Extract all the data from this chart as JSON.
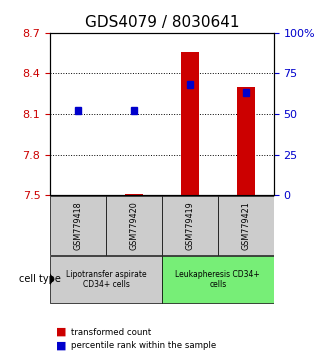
{
  "title": "GDS4079 / 8030641",
  "samples": [
    "GSM779418",
    "GSM779420",
    "GSM779419",
    "GSM779421"
  ],
  "transformed_count": [
    7.505,
    7.508,
    8.555,
    8.3
  ],
  "percentile_rank": [
    52,
    52,
    68,
    63
  ],
  "ylim_left": [
    7.5,
    8.7
  ],
  "ylim_right": [
    0,
    100
  ],
  "yticks_left": [
    7.5,
    7.8,
    8.1,
    8.4,
    8.7
  ],
  "yticks_right": [
    0,
    25,
    50,
    75,
    100
  ],
  "bar_color": "#cc0000",
  "square_color": "#0000cc",
  "bar_bottom": 7.5,
  "cell_types": [
    {
      "label": "Lipotransfer aspirate\nCD34+ cells",
      "start": 0,
      "end": 2,
      "color": "#cccccc"
    },
    {
      "label": "Leukapheresis CD34+\ncells",
      "start": 2,
      "end": 4,
      "color": "#77ee77"
    }
  ],
  "cell_type_label": "cell type",
  "legend_items": [
    {
      "color": "#cc0000",
      "label": "transformed count"
    },
    {
      "color": "#0000cc",
      "label": "percentile rank within the sample"
    }
  ],
  "title_fontsize": 11,
  "tick_fontsize": 8,
  "label_fontsize": 7.5
}
